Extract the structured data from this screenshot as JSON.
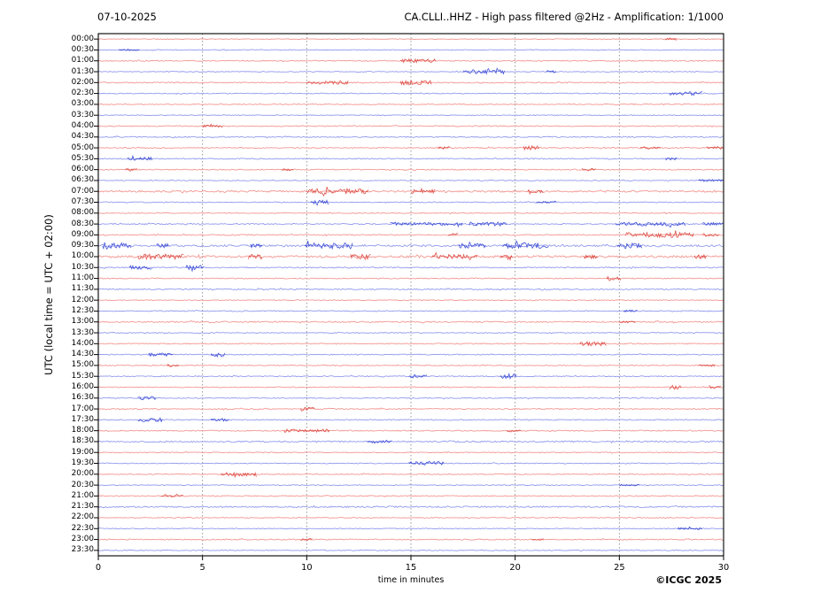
{
  "header": {
    "date": "07-10-2025",
    "title": "CA.CLLI..HHZ - High pass filtered @2Hz - Amplification: 1/1000"
  },
  "axes": {
    "y_label": "UTC (local time = UTC + 02:00)",
    "x_label": "time in minutes",
    "x_ticks": [
      "0",
      "5",
      "10",
      "15",
      "20",
      "25",
      "30"
    ],
    "grid_minutes": [
      5,
      10,
      15,
      20,
      25
    ]
  },
  "footer": {
    "copyright": "©ICGC 2025"
  },
  "colors": {
    "trace_red": "#f2918c",
    "trace_red_dark": "#d8362d",
    "trace_blue": "#8d95ec",
    "trace_blue_dark": "#2336cf",
    "grid": "#8c8c8c",
    "axis": "#000000",
    "background": "#ffffff"
  },
  "chart_data": {
    "type": "line",
    "subtype": "helicorder-seismogram",
    "title": "CA.CLLI..HHZ - High pass filtered @2Hz - Amplification: 1/1000",
    "date": "07-10-2025",
    "xlabel": "time in minutes",
    "ylabel": "UTC (local time = UTC + 02:00)",
    "xlim": [
      0,
      30
    ],
    "x_ticks": [
      0,
      5,
      10,
      15,
      20,
      25,
      30
    ],
    "grid": "vertical dashed gridlines every 5 minutes",
    "legend": "none",
    "row_duration_minutes": 30,
    "rows": [
      {
        "label": "00:00",
        "color": "red",
        "amp": 0.35,
        "bursts": [
          [
            27.2,
            27.8,
            0.6
          ]
        ]
      },
      {
        "label": "00:30",
        "color": "blue",
        "amp": 0.35,
        "bursts": [
          [
            1.0,
            2.0,
            0.5
          ]
        ]
      },
      {
        "label": "01:00",
        "color": "red",
        "amp": 0.5,
        "bursts": [
          [
            14.5,
            16.2,
            1.2
          ]
        ]
      },
      {
        "label": "01:30",
        "color": "blue",
        "amp": 0.4,
        "bursts": [
          [
            17.5,
            19.5,
            1.6
          ],
          [
            21.5,
            22.0,
            0.6
          ]
        ]
      },
      {
        "label": "02:00",
        "color": "red",
        "amp": 0.5,
        "bursts": [
          [
            10.0,
            12.0,
            1.2
          ],
          [
            14.5,
            16.0,
            1.7
          ]
        ]
      },
      {
        "label": "02:30",
        "color": "blue",
        "amp": 0.4,
        "bursts": [
          [
            27.4,
            29.0,
            1.3
          ]
        ]
      },
      {
        "label": "03:00",
        "color": "red",
        "amp": 0.45,
        "bursts": []
      },
      {
        "label": "03:30",
        "color": "blue",
        "amp": 0.35,
        "bursts": []
      },
      {
        "label": "04:00",
        "color": "red",
        "amp": 0.5,
        "bursts": [
          [
            5.0,
            6.0,
            0.5
          ]
        ]
      },
      {
        "label": "04:30",
        "color": "blue",
        "amp": 0.55,
        "bursts": []
      },
      {
        "label": "05:00",
        "color": "red",
        "amp": 0.5,
        "bursts": [
          [
            16.3,
            16.9,
            0.8
          ],
          [
            20.4,
            21.2,
            1.3
          ],
          [
            26.0,
            27.0,
            0.7
          ],
          [
            29.2,
            30.0,
            0.8
          ]
        ]
      },
      {
        "label": "05:30",
        "color": "blue",
        "amp": 0.5,
        "bursts": [
          [
            1.4,
            2.6,
            1.0
          ],
          [
            27.2,
            27.8,
            0.8
          ]
        ]
      },
      {
        "label": "06:00",
        "color": "red",
        "amp": 0.5,
        "bursts": [
          [
            1.3,
            1.9,
            0.7
          ],
          [
            8.8,
            9.4,
            0.6
          ],
          [
            23.2,
            23.9,
            0.7
          ]
        ]
      },
      {
        "label": "06:30",
        "color": "blue",
        "amp": 0.4,
        "bursts": [
          [
            28.8,
            30.0,
            0.6
          ]
        ]
      },
      {
        "label": "07:00",
        "color": "red",
        "amp": 0.8,
        "bursts": [
          [
            10.0,
            13.0,
            1.6
          ],
          [
            15.0,
            16.2,
            0.9
          ],
          [
            20.6,
            21.4,
            0.8
          ]
        ]
      },
      {
        "label": "07:30",
        "color": "blue",
        "amp": 0.4,
        "bursts": [
          [
            10.2,
            11.1,
            1.5
          ],
          [
            21.0,
            22.0,
            0.5
          ]
        ]
      },
      {
        "label": "08:00",
        "color": "red",
        "amp": 0.4,
        "bursts": []
      },
      {
        "label": "08:30",
        "color": "blue",
        "amp": 0.55,
        "bursts": [
          [
            14.0,
            17.5,
            0.9
          ],
          [
            17.8,
            19.6,
            1.3
          ],
          [
            24.8,
            28.2,
            1.3
          ],
          [
            29.0,
            30.0,
            1.0
          ]
        ]
      },
      {
        "label": "09:00",
        "color": "red",
        "amp": 0.55,
        "bursts": [
          [
            16.8,
            17.3,
            0.8
          ],
          [
            25.3,
            28.6,
            1.9
          ],
          [
            29.0,
            29.8,
            0.9
          ]
        ]
      },
      {
        "label": "09:30",
        "color": "blue",
        "amp": 0.9,
        "bursts": [
          [
            0.2,
            1.6,
            1.6
          ],
          [
            2.8,
            3.4,
            1.2
          ],
          [
            7.3,
            7.9,
            1.2
          ],
          [
            9.9,
            12.2,
            1.9
          ],
          [
            17.3,
            18.6,
            1.2
          ],
          [
            19.4,
            21.6,
            1.9
          ],
          [
            24.9,
            26.1,
            1.6
          ]
        ]
      },
      {
        "label": "10:00",
        "color": "red",
        "amp": 1.0,
        "bursts": [
          [
            1.9,
            4.1,
            1.6
          ],
          [
            7.2,
            7.9,
            1.4
          ],
          [
            12.1,
            13.1,
            1.8
          ],
          [
            16.0,
            18.2,
            1.1
          ],
          [
            19.3,
            19.9,
            0.9
          ],
          [
            23.3,
            24.0,
            0.8
          ],
          [
            28.6,
            29.2,
            0.8
          ]
        ]
      },
      {
        "label": "10:30",
        "color": "blue",
        "amp": 0.55,
        "bursts": [
          [
            1.5,
            2.6,
            1.1
          ],
          [
            4.2,
            5.1,
            1.5
          ]
        ]
      },
      {
        "label": "11:00",
        "color": "red",
        "amp": 0.45,
        "bursts": [
          [
            24.4,
            25.1,
            1.3
          ]
        ]
      },
      {
        "label": "11:30",
        "color": "blue",
        "amp": 0.55,
        "bursts": []
      },
      {
        "label": "12:00",
        "color": "red",
        "amp": 0.35,
        "bursts": []
      },
      {
        "label": "12:30",
        "color": "blue",
        "amp": 0.45,
        "bursts": [
          [
            25.2,
            25.9,
            0.6
          ]
        ]
      },
      {
        "label": "13:00",
        "color": "red",
        "amp": 0.6,
        "bursts": [
          [
            25.0,
            25.8,
            0.5
          ]
        ]
      },
      {
        "label": "13:30",
        "color": "blue",
        "amp": 0.4,
        "bursts": []
      },
      {
        "label": "14:00",
        "color": "red",
        "amp": 0.45,
        "bursts": [
          [
            23.1,
            24.4,
            1.5
          ]
        ]
      },
      {
        "label": "14:30",
        "color": "blue",
        "amp": 0.45,
        "bursts": [
          [
            2.4,
            3.6,
            1.2
          ],
          [
            5.4,
            6.1,
            1.0
          ]
        ]
      },
      {
        "label": "15:00",
        "color": "red",
        "amp": 0.45,
        "bursts": [
          [
            3.3,
            3.9,
            0.7
          ],
          [
            28.8,
            29.6,
            0.7
          ]
        ]
      },
      {
        "label": "15:30",
        "color": "blue",
        "amp": 0.45,
        "bursts": [
          [
            14.9,
            15.8,
            1.0
          ],
          [
            19.3,
            20.1,
            1.9
          ]
        ]
      },
      {
        "label": "16:00",
        "color": "red",
        "amp": 0.4,
        "bursts": [
          [
            27.4,
            28.0,
            1.6
          ],
          [
            29.3,
            29.9,
            0.8
          ]
        ]
      },
      {
        "label": "16:30",
        "color": "blue",
        "amp": 0.45,
        "bursts": [
          [
            1.9,
            2.8,
            1.2
          ]
        ]
      },
      {
        "label": "17:00",
        "color": "red",
        "amp": 0.5,
        "bursts": [
          [
            9.7,
            10.4,
            1.5
          ]
        ]
      },
      {
        "label": "17:30",
        "color": "blue",
        "amp": 0.45,
        "bursts": [
          [
            1.9,
            3.1,
            1.4
          ],
          [
            5.4,
            6.3,
            1.1
          ]
        ]
      },
      {
        "label": "18:00",
        "color": "red",
        "amp": 0.5,
        "bursts": [
          [
            8.9,
            11.1,
            0.9
          ],
          [
            19.6,
            20.3,
            0.6
          ]
        ]
      },
      {
        "label": "18:30",
        "color": "blue",
        "amp": 0.7,
        "bursts": [
          [
            12.9,
            14.1,
            0.6
          ]
        ]
      },
      {
        "label": "19:00",
        "color": "red",
        "amp": 0.4,
        "bursts": []
      },
      {
        "label": "19:30",
        "color": "blue",
        "amp": 0.4,
        "bursts": [
          [
            14.9,
            16.6,
            1.5
          ]
        ]
      },
      {
        "label": "20:00",
        "color": "red",
        "amp": 0.45,
        "bursts": [
          [
            5.9,
            7.6,
            1.2
          ]
        ]
      },
      {
        "label": "20:30",
        "color": "blue",
        "amp": 0.4,
        "bursts": [
          [
            25.0,
            26.0,
            0.5
          ]
        ]
      },
      {
        "label": "21:00",
        "color": "red",
        "amp": 0.45,
        "bursts": [
          [
            3.0,
            4.1,
            0.8
          ]
        ]
      },
      {
        "label": "21:30",
        "color": "blue",
        "amp": 0.7,
        "bursts": []
      },
      {
        "label": "22:00",
        "color": "red",
        "amp": 0.4,
        "bursts": []
      },
      {
        "label": "22:30",
        "color": "blue",
        "amp": 0.4,
        "bursts": [
          [
            27.8,
            29.0,
            0.5
          ]
        ]
      },
      {
        "label": "23:00",
        "color": "red",
        "amp": 0.5,
        "bursts": [
          [
            9.7,
            10.3,
            0.6
          ],
          [
            20.8,
            21.4,
            0.5
          ]
        ]
      },
      {
        "label": "23:30",
        "color": "blue",
        "amp": 0.4,
        "bursts": []
      }
    ]
  }
}
